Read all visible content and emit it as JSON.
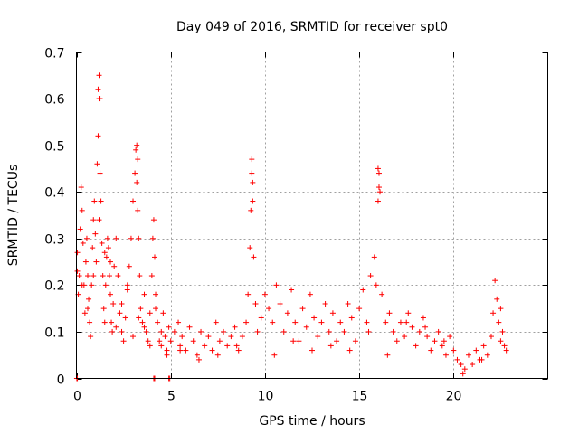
{
  "chart_data": {
    "type": "scatter",
    "title": "Day 049 of 2016, SRMTID for receiver spt0",
    "xlabel": "GPS time / hours",
    "ylabel": "SRMTID / TECUs",
    "xlim": [
      0,
      25
    ],
    "ylim": [
      0,
      0.7
    ],
    "xticks": [
      0,
      5,
      10,
      15,
      20
    ],
    "xtick_labels": [
      "0",
      "5",
      "10",
      "15",
      "20"
    ],
    "yticks": [
      0,
      0.1,
      0.2,
      0.3,
      0.4,
      0.5,
      0.6,
      0.7
    ],
    "ytick_labels": [
      "0",
      "0.1",
      "0.2",
      "0.3",
      "0.4",
      "0.5",
      "0.6",
      "0.7"
    ],
    "grid": true,
    "marker": "+",
    "color": "#ff0000",
    "series": [
      {
        "name": "SRMTID",
        "x": [
          0.05,
          0.1,
          0.15,
          0.2,
          0.25,
          0.3,
          0.35,
          0.4,
          0.45,
          0.5,
          0.55,
          0.6,
          0.65,
          0.7,
          0.75,
          0.8,
          0.85,
          0.9,
          0.95,
          1.0,
          1.05,
          1.1,
          1.15,
          1.2,
          1.25,
          1.3,
          1.35,
          1.4,
          1.45,
          1.5,
          1.55,
          1.6,
          1.65,
          1.7,
          1.75,
          1.8,
          1.85,
          1.9,
          1.95,
          2.0,
          2.1,
          2.2,
          2.3,
          2.4,
          2.5,
          2.6,
          2.7,
          2.8,
          2.9,
          3.0,
          3.1,
          3.15,
          3.2,
          3.25,
          3.3,
          3.35,
          3.4,
          3.5,
          3.6,
          3.7,
          3.8,
          3.9,
          4.0,
          4.05,
          4.1,
          4.15,
          4.2,
          4.3,
          4.4,
          4.5,
          4.6,
          4.7,
          4.8,
          4.9,
          5.0,
          5.2,
          5.4,
          5.5,
          5.6,
          5.8,
          6.0,
          6.2,
          6.4,
          6.6,
          6.8,
          7.0,
          7.2,
          7.4,
          7.6,
          7.8,
          8.0,
          8.2,
          8.4,
          8.6,
          8.8,
          9.0,
          9.1,
          9.2,
          9.25,
          9.3,
          9.35,
          9.4,
          9.5,
          9.6,
          9.8,
          10.0,
          10.2,
          10.4,
          10.6,
          10.8,
          11.0,
          11.2,
          11.4,
          11.6,
          11.8,
          12.0,
          12.2,
          12.4,
          12.6,
          12.8,
          13.0,
          13.2,
          13.4,
          13.6,
          13.8,
          14.0,
          14.2,
          14.4,
          14.6,
          14.8,
          15.0,
          15.2,
          15.4,
          15.6,
          15.8,
          15.9,
          16.0,
          16.05,
          16.1,
          16.2,
          16.4,
          16.6,
          16.8,
          17.0,
          17.2,
          17.4,
          17.6,
          17.8,
          18.0,
          18.2,
          18.4,
          18.6,
          18.8,
          19.0,
          19.2,
          19.4,
          19.6,
          19.8,
          20.0,
          20.2,
          20.4,
          20.6,
          20.8,
          21.0,
          21.2,
          21.4,
          21.6,
          21.8,
          22.0,
          22.1,
          22.2,
          22.3,
          22.4,
          22.5,
          22.6,
          22.7,
          22.8,
          0.05,
          0.3,
          0.6,
          0.9,
          1.2,
          1.5,
          1.8,
          2.1,
          2.4,
          2.7,
          3.0,
          3.3,
          3.6,
          3.9,
          4.2,
          4.5,
          4.8,
          5.5,
          6.5,
          7.5,
          8.5,
          9.5,
          10.5,
          11.5,
          12.5,
          13.5,
          14.5,
          15.5,
          16.5,
          17.5,
          18.5,
          19.5,
          20.5,
          21.5,
          22.5,
          0.02,
          0.05,
          4.1,
          4.15,
          4.9,
          4.95,
          1.15,
          1.2,
          1.25,
          9.3,
          9.35,
          16.0,
          16.05,
          3.2,
          3.25
        ],
        "y": [
          0.27,
          0.18,
          0.22,
          0.32,
          0.41,
          0.36,
          0.29,
          0.2,
          0.14,
          0.25,
          0.3,
          0.22,
          0.17,
          0.12,
          0.09,
          0.2,
          0.28,
          0.34,
          0.38,
          0.31,
          0.25,
          0.46,
          0.52,
          0.6,
          0.44,
          0.38,
          0.29,
          0.22,
          0.15,
          0.12,
          0.2,
          0.26,
          0.3,
          0.28,
          0.22,
          0.18,
          0.12,
          0.1,
          0.16,
          0.24,
          0.3,
          0.22,
          0.14,
          0.1,
          0.08,
          0.13,
          0.19,
          0.24,
          0.3,
          0.38,
          0.44,
          0.49,
          0.42,
          0.36,
          0.3,
          0.22,
          0.15,
          0.12,
          0.18,
          0.1,
          0.08,
          0.14,
          0.22,
          0.3,
          0.34,
          0.26,
          0.18,
          0.12,
          0.08,
          0.1,
          0.14,
          0.09,
          0.06,
          0.11,
          0.08,
          0.1,
          0.12,
          0.07,
          0.09,
          0.06,
          0.11,
          0.08,
          0.05,
          0.1,
          0.07,
          0.09,
          0.06,
          0.12,
          0.08,
          0.1,
          0.07,
          0.09,
          0.11,
          0.06,
          0.09,
          0.12,
          0.18,
          0.28,
          0.36,
          0.44,
          0.38,
          0.26,
          0.16,
          0.1,
          0.13,
          0.18,
          0.15,
          0.12,
          0.2,
          0.16,
          0.1,
          0.14,
          0.19,
          0.12,
          0.08,
          0.15,
          0.11,
          0.18,
          0.13,
          0.09,
          0.12,
          0.16,
          0.1,
          0.14,
          0.08,
          0.12,
          0.1,
          0.16,
          0.13,
          0.08,
          0.15,
          0.19,
          0.12,
          0.22,
          0.26,
          0.2,
          0.38,
          0.44,
          0.4,
          0.18,
          0.12,
          0.14,
          0.1,
          0.08,
          0.12,
          0.09,
          0.14,
          0.11,
          0.07,
          0.1,
          0.13,
          0.09,
          0.06,
          0.08,
          0.1,
          0.07,
          0.05,
          0.09,
          0.06,
          0.04,
          0.03,
          0.02,
          0.05,
          0.03,
          0.06,
          0.04,
          0.07,
          0.05,
          0.09,
          0.14,
          0.21,
          0.17,
          0.12,
          0.15,
          0.1,
          0.07,
          0.06,
          0.23,
          0.2,
          0.15,
          0.22,
          0.34,
          0.27,
          0.25,
          0.11,
          0.16,
          0.2,
          0.09,
          0.13,
          0.11,
          0.07,
          0.15,
          0.07,
          0.05,
          0.06,
          0.04,
          0.05,
          0.07,
          0.16,
          0.05,
          0.08,
          0.06,
          0.07,
          0.06,
          0.1,
          0.05,
          0.12,
          0.11,
          0.08,
          0.01,
          0.04,
          0.08,
          0.0,
          0.0,
          0.0,
          0.0,
          0.0,
          0.0,
          0.62,
          0.65,
          0.6,
          0.47,
          0.42,
          0.45,
          0.41,
          0.5,
          0.47
        ]
      }
    ]
  }
}
